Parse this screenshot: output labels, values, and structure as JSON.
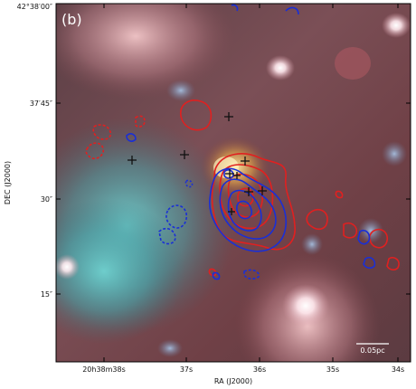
{
  "panel_label": "(b)",
  "axes": {
    "x_title": "RA (J2000)",
    "y_title": "DEC (J2000)",
    "x_ticks": [
      "20h38m38s",
      "37s",
      "36s",
      "35s",
      "34s"
    ],
    "y_ticks": [
      "42°38′00″",
      "37′45″",
      "30″",
      "15″"
    ]
  },
  "scale_bar": {
    "label": "0.05pc"
  },
  "markers": {
    "count": 9,
    "color": "#111111"
  },
  "contours": {
    "red_color": "#e02020",
    "blue_color": "#1a2fd6"
  }
}
